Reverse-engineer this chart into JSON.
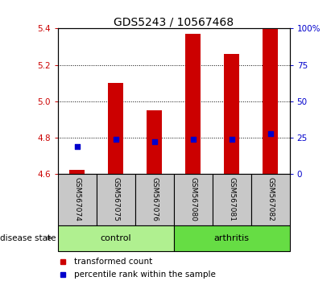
{
  "title": "GDS5243 / 10567468",
  "samples": [
    "GSM567074",
    "GSM567075",
    "GSM567076",
    "GSM567080",
    "GSM567081",
    "GSM567082"
  ],
  "red_values": [
    4.62,
    5.1,
    4.95,
    5.37,
    5.26,
    5.4
  ],
  "blue_values": [
    4.75,
    4.79,
    4.775,
    4.79,
    4.79,
    4.82
  ],
  "ymin": 4.6,
  "ymax": 5.4,
  "yticks_left": [
    4.6,
    4.8,
    5.0,
    5.2,
    5.4
  ],
  "yticks_right": [
    0,
    25,
    50,
    75,
    100
  ],
  "groups": [
    {
      "label": "control",
      "indices": [
        0,
        1,
        2
      ],
      "color": "#b0f090"
    },
    {
      "label": "arthritis",
      "indices": [
        3,
        4,
        5
      ],
      "color": "#66dd44"
    }
  ],
  "bar_color": "#cc0000",
  "dot_color": "#0000cc",
  "bar_width": 0.4,
  "sample_box_color": "#c8c8c8",
  "legend_red": "transformed count",
  "legend_blue": "percentile rank within the sample",
  "title_fontsize": 10,
  "tick_fontsize": 7.5,
  "label_fontsize": 7.5,
  "sample_fontsize": 6.5,
  "group_fontsize": 8
}
